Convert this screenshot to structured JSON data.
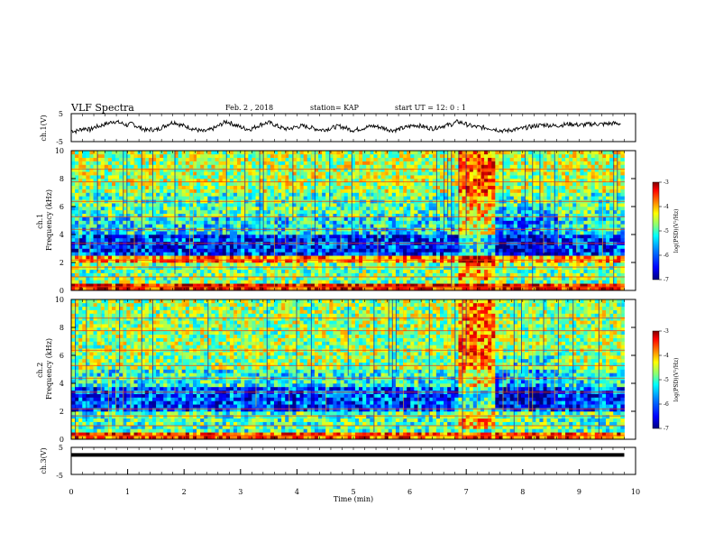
{
  "header": {
    "title": "VLF Spectra",
    "date": "Feb. 2  , 2018",
    "station": "station= KAP",
    "start": "start  UT =   12: 0  : 1"
  },
  "chart_data": [
    {
      "type": "line",
      "id": "ch1-waveform",
      "ylabel": "ch.1(V)",
      "ylim": [
        -5,
        5
      ],
      "yticks": [
        "5",
        "-5"
      ],
      "xlim": [
        0,
        10
      ],
      "samples_per_min": 12,
      "values": [
        -1.0,
        -1.3,
        -0.6,
        -0.2,
        -0.8,
        0.2,
        0.5,
        1.2,
        1.6,
        2.3,
        1.9,
        1.4,
        0.8,
        1.5,
        0.4,
        -0.2,
        -1.0,
        -0.6,
        -0.9,
        -0.1,
        0.7,
        1.6,
        2.0,
        1.1,
        0.6,
        0.2,
        -0.5,
        -0.9,
        -1.4,
        -1.1,
        -0.5,
        0.3,
        1.3,
        2.2,
        1.6,
        0.8,
        0.2,
        -0.3,
        -0.6,
        0.1,
        0.9,
        1.5,
        1.8,
        1.2,
        0.4,
        -0.2,
        -0.5,
        -0.1,
        0.3,
        0.6,
        0.4,
        0.0,
        -0.4,
        -0.8,
        -0.6,
        -0.3,
        0.2,
        0.5,
        0.1,
        -0.5,
        -0.9,
        -0.6,
        -0.2,
        0.2,
        0.6,
        0.4,
        0.0,
        -0.4,
        -0.9,
        -0.8,
        -0.4,
        0.0,
        0.5,
        0.9,
        0.7,
        0.3,
        -0.1,
        -0.3,
        0.2,
        0.6,
        0.9,
        1.2,
        2.1,
        1.8,
        1.2,
        0.6,
        0.3,
        0.1,
        0.0,
        -0.2,
        -0.5,
        -0.9,
        -1.2,
        -1.0,
        -0.7,
        -0.5,
        -0.3,
        0.1,
        0.4,
        0.7,
        0.9,
        1.0,
        0.8,
        0.6,
        0.9,
        1.1,
        1.3,
        1.2,
        0.9,
        1.0,
        1.2,
        1.3,
        1.3,
        1.2,
        1.4,
        1.5,
        1.5,
        1.4
      ]
    },
    {
      "type": "heatmap",
      "id": "ch1-spectrogram",
      "ylabel": "ch.1 Frequency (kHz)",
      "ylim": [
        0,
        10
      ],
      "yticks": [
        0,
        2,
        4,
        6,
        8,
        10
      ],
      "xlim": [
        0,
        10
      ],
      "colorbar_label": "log(PSD)(V²/Hz)",
      "colorbar_ticks": [
        -3,
        -4,
        -5,
        -6,
        -7
      ],
      "colorbar_range": [
        -7,
        -3
      ],
      "bands_khz": [
        [
          0,
          0.4,
          -3.5
        ],
        [
          0.4,
          2.0,
          -5.0
        ],
        [
          2.0,
          2.4,
          -4.0
        ],
        [
          2.4,
          3.8,
          -6.3
        ],
        [
          3.8,
          5.2,
          -5.5
        ],
        [
          5.2,
          6.8,
          -5.2
        ],
        [
          6.8,
          10,
          -4.8
        ]
      ]
    },
    {
      "type": "heatmap",
      "id": "ch2-spectrogram",
      "ylabel": "ch.2 Frequency (kHz)",
      "ylim": [
        0,
        10
      ],
      "yticks": [
        0,
        2,
        4,
        6,
        8,
        10
      ],
      "xlim": [
        0,
        10
      ],
      "colorbar_label": "log(PSD)(V²/Hz)",
      "colorbar_ticks": [
        -3,
        -4,
        -5,
        -6,
        -7
      ],
      "colorbar_range": [
        -7,
        -3
      ],
      "bands_khz": [
        [
          0,
          0.5,
          -3.8
        ],
        [
          0.5,
          2.0,
          -5.2
        ],
        [
          2.0,
          3.6,
          -6.2
        ],
        [
          3.6,
          5.0,
          -5.4
        ],
        [
          5.0,
          10,
          -4.9
        ]
      ]
    },
    {
      "type": "line",
      "id": "ch3-waveform",
      "ylabel": "ch.3(V)",
      "ylim": [
        -5,
        5
      ],
      "yticks": [
        "5",
        "-5"
      ],
      "xlim": [
        0,
        10
      ],
      "x": [
        0,
        9.8
      ],
      "values": [
        2.2,
        2.2
      ]
    }
  ],
  "xaxis": {
    "label": "Time  (min)",
    "ticks": [
      "0",
      "1",
      "2",
      "3",
      "4",
      "5",
      "6",
      "7",
      "8",
      "9",
      "10"
    ]
  },
  "colors": {
    "cmap": [
      "#00007f",
      "#0000ff",
      "#007fff",
      "#00ffff",
      "#7fff7f",
      "#ffff00",
      "#ff7f00",
      "#ff0000",
      "#7f0000"
    ]
  }
}
